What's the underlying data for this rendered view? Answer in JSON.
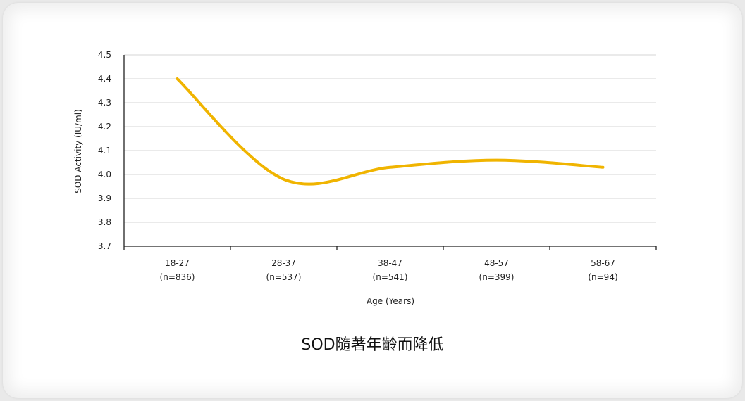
{
  "caption": "SOD隨著年齡而降低",
  "colors": {
    "line": "#f0b400",
    "grid": "#d4d4d4",
    "axis": "#222222"
  },
  "chart_data": {
    "type": "line",
    "categories": [
      "18-27",
      "28-37",
      "38-47",
      "48-57",
      "58-67"
    ],
    "category_counts": [
      "(n=836)",
      "(n=537)",
      "(n=541)",
      "(n=399)",
      "(n=94)"
    ],
    "series": [
      {
        "values": [
          4.4,
          3.98,
          4.03,
          4.06,
          4.03
        ]
      }
    ],
    "xlabel": "Age (Years)",
    "ylabel": "SOD Activity (IU/ml)",
    "ylim": [
      3.7,
      4.5
    ],
    "yticks": [
      "3.7",
      "3.8",
      "3.9",
      "4.0",
      "4.1",
      "4.2",
      "4.3",
      "4.4",
      "4.5"
    ],
    "grid": true,
    "smooth": true
  }
}
